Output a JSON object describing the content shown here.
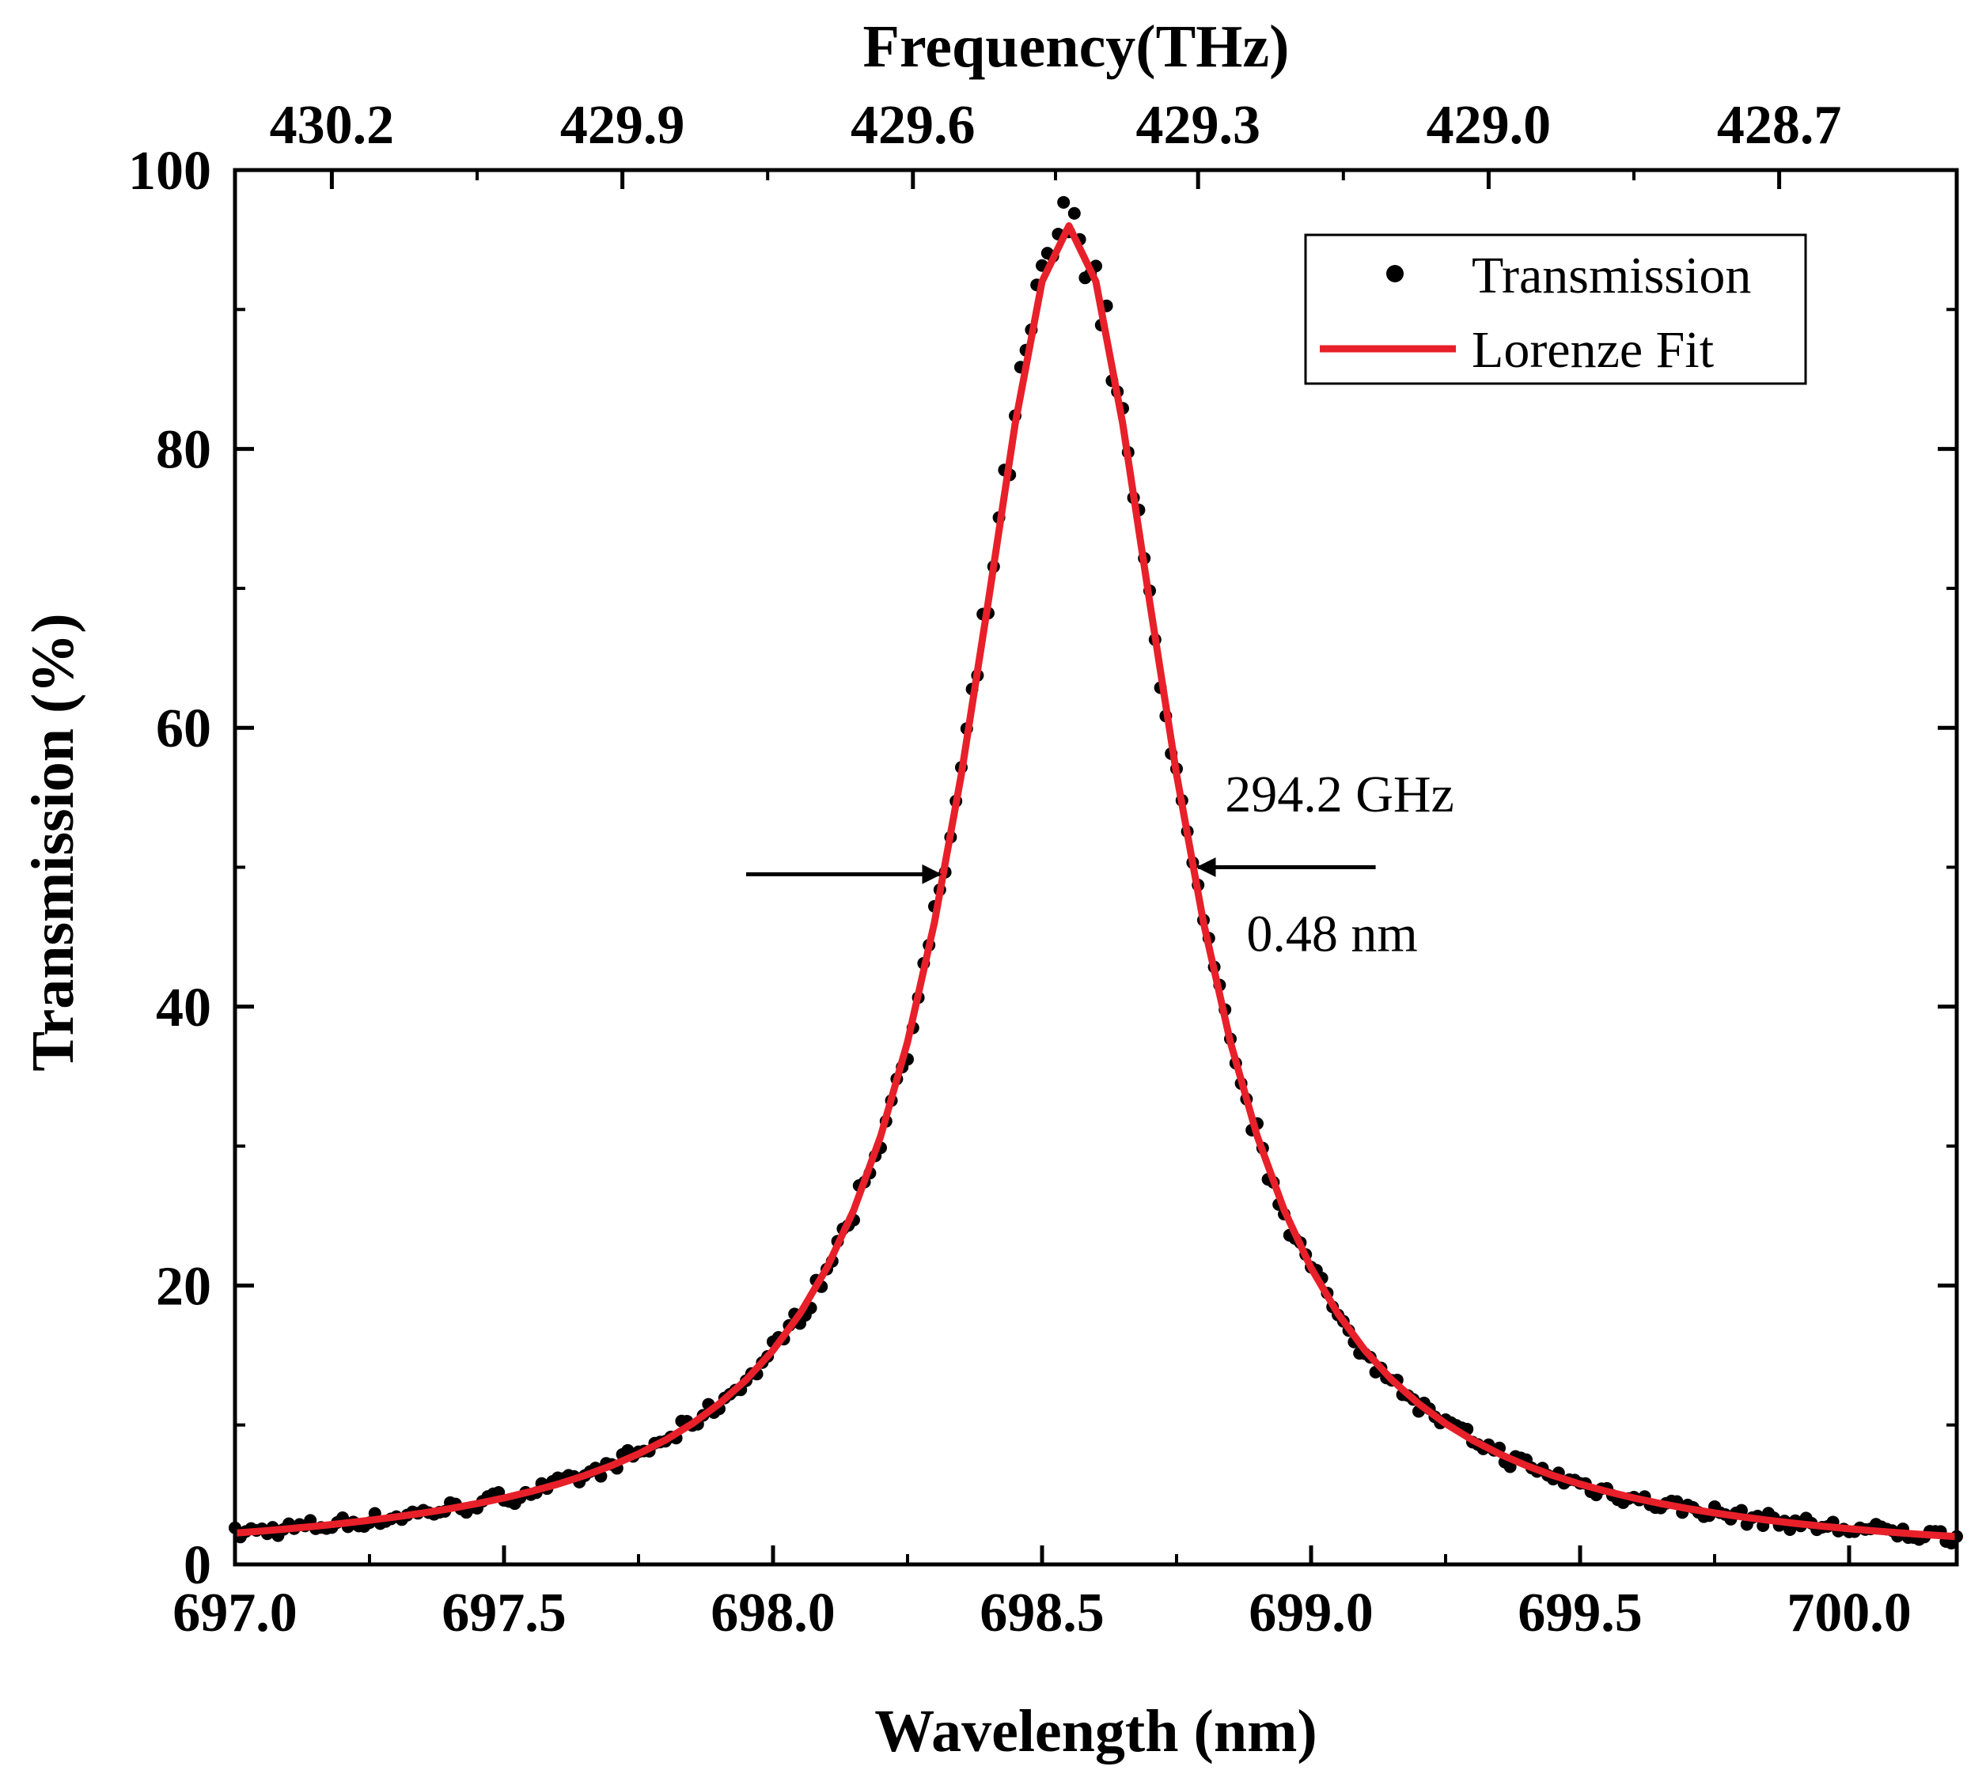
{
  "chart_data": {
    "type": "scatter",
    "title": "",
    "xlabel": "Wavelength (nm)",
    "ylabel": "Transmission (%)",
    "x2label": "Frequency(THz)",
    "xlim": [
      697.0,
      700.2
    ],
    "ylim": [
      0,
      100
    ],
    "x_ticks": [
      "697.0",
      "697.5",
      "698.0",
      "698.5",
      "699.0",
      "699.5",
      "700.0"
    ],
    "y_ticks": [
      "0",
      "20",
      "40",
      "60",
      "80",
      "100"
    ],
    "top_ticks": [
      {
        "label": "430.2",
        "wavelength": 697.18
      },
      {
        "label": "429.9",
        "wavelength": 697.72
      },
      {
        "label": "429.6",
        "wavelength": 698.26
      },
      {
        "label": "429.3",
        "wavelength": 698.79
      },
      {
        "label": "429.0",
        "wavelength": 699.33
      },
      {
        "label": "428.7",
        "wavelength": 699.87
      }
    ],
    "series": [
      {
        "name": "Transmission",
        "kind": "scatter",
        "color": "#000000",
        "model": {
          "type": "lorentzian",
          "center": 698.55,
          "fwhm": 0.48,
          "peak": 96,
          "step": 0.01,
          "noise": 1.0
        }
      },
      {
        "name": "Lorenze Fit",
        "kind": "line",
        "color": "#e8202a",
        "model": {
          "type": "lorentzian",
          "center": 698.55,
          "fwhm": 0.48,
          "peak": 96,
          "step": 0.05
        }
      }
    ],
    "legend": {
      "position": "top-right",
      "entries": [
        "Transmission",
        "Lorenze Fit"
      ]
    },
    "annotations": [
      {
        "text": "294.2 GHz",
        "x": 698.84,
        "y": 54
      },
      {
        "text": "0.48 nm",
        "x": 698.88,
        "y": 44
      },
      {
        "type": "arrow",
        "from": [
          697.95,
          49.5
        ],
        "to": [
          698.31,
          49.5
        ]
      },
      {
        "type": "arrow",
        "from": [
          699.12,
          50
        ],
        "to": [
          698.79,
          50
        ]
      }
    ]
  }
}
